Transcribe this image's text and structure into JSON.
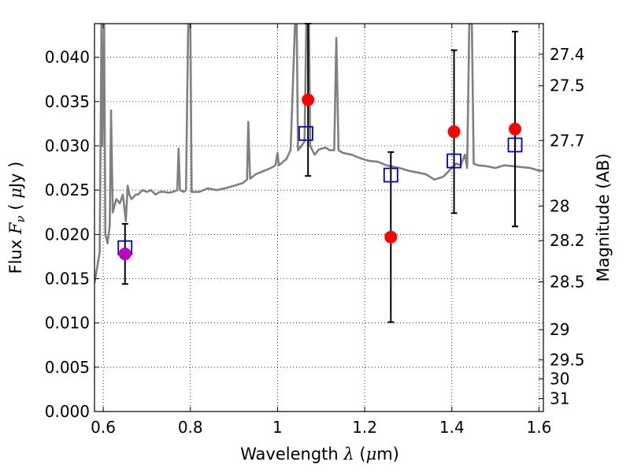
{
  "chart_data": {
    "type": "scatter",
    "title": "",
    "xlabel_prefix": "Wavelength  ",
    "xlabel_symbol": "λ",
    "xlabel_unit_open": " (",
    "xlabel_unit_symbol": "μ",
    "xlabel_unit_close": "m)",
    "ylabel_prefix": "Flux  ",
    "ylabel_symbol": "F",
    "ylabel_subscript": "ν",
    "ylabel_unit_open": "  ( ",
    "ylabel_unit_symbol": "μ",
    "ylabel_unit_close": "Jy )",
    "y2label": "Magnitude (AB)",
    "xlim": [
      0.58,
      1.61
    ],
    "ylim": [
      0.0,
      0.0438
    ],
    "grid": true,
    "grid_style": "dotted",
    "x_ticks": [
      0.6,
      0.8,
      1.0,
      1.2,
      1.4,
      1.6
    ],
    "x_tick_labels": [
      "0.6",
      "0.8",
      "1",
      "1.2",
      "1.4",
      "1.6"
    ],
    "y_ticks": [
      0.0,
      0.005,
      0.01,
      0.015,
      0.02,
      0.025,
      0.03,
      0.035,
      0.04
    ],
    "y_tick_labels": [
      "0.000",
      "0.005",
      "0.010",
      "0.015",
      "0.020",
      "0.025",
      "0.030",
      "0.035",
      "0.040"
    ],
    "y2_ticks": [
      {
        "label": "27.4",
        "flux": 0.04034
      },
      {
        "label": "27.5",
        "flux": 0.03679
      },
      {
        "label": "27.7",
        "flux": 0.0306
      },
      {
        "label": "28",
        "flux": 0.02321
      },
      {
        "label": "28.2",
        "flux": 0.0193
      },
      {
        "label": "28.5",
        "flux": 0.01464
      },
      {
        "label": "29",
        "flux": 0.00924
      },
      {
        "label": "29.5",
        "flux": 0.00583
      },
      {
        "label": "30",
        "flux": 0.00368
      },
      {
        "label": "31",
        "flux": 0.00146
      }
    ],
    "colors": {
      "spectrum": "#808080",
      "observed": "#ff0000",
      "observed_special": "#bf00bf",
      "model": "#0000cc",
      "errorbar": "#000000"
    },
    "series": [
      {
        "role": "observed",
        "marker": "circle",
        "points": [
          {
            "x": 0.65,
            "y": 0.0178,
            "yerr": 0.0034,
            "color": "#bf00bf"
          },
          {
            "x": 1.07,
            "y": 0.0352,
            "yerr": 0.0086,
            "color": "#ff0000"
          },
          {
            "x": 1.26,
            "y": 0.0197,
            "yerr": 0.0096,
            "color": "#ff0000"
          },
          {
            "x": 1.405,
            "y": 0.0316,
            "yerr": 0.0092,
            "color": "#ff0000"
          },
          {
            "x": 1.545,
            "y": 0.0319,
            "yerr": 0.011,
            "color": "#ff0000"
          }
        ]
      },
      {
        "role": "model",
        "marker": "open-square",
        "points": [
          {
            "x": 0.65,
            "y": 0.0185
          },
          {
            "x": 1.065,
            "y": 0.0314
          },
          {
            "x": 1.26,
            "y": 0.0267
          },
          {
            "x": 1.405,
            "y": 0.0283
          },
          {
            "x": 1.545,
            "y": 0.0301
          }
        ]
      },
      {
        "role": "spectrum",
        "marker": "line",
        "points": [
          [
            0.58,
            0.0145
          ],
          [
            0.592,
            0.018
          ],
          [
            0.596,
            0.044
          ],
          [
            0.598,
            0.03
          ],
          [
            0.602,
            0.044
          ],
          [
            0.605,
            0.02
          ],
          [
            0.61,
            0.019
          ],
          [
            0.615,
            0.021
          ],
          [
            0.618,
            0.034
          ],
          [
            0.622,
            0.0225
          ],
          [
            0.63,
            0.024
          ],
          [
            0.638,
            0.0235
          ],
          [
            0.645,
            0.0245
          ],
          [
            0.652,
            0.0215
          ],
          [
            0.656,
            0.0255
          ],
          [
            0.66,
            0.0245
          ],
          [
            0.665,
            0.024
          ],
          [
            0.675,
            0.0245
          ],
          [
            0.68,
            0.0245
          ],
          [
            0.69,
            0.025
          ],
          [
            0.7,
            0.0248
          ],
          [
            0.71,
            0.025
          ],
          [
            0.72,
            0.0245
          ],
          [
            0.73,
            0.0248
          ],
          [
            0.74,
            0.0248
          ],
          [
            0.75,
            0.0247
          ],
          [
            0.76,
            0.0248
          ],
          [
            0.77,
            0.025
          ],
          [
            0.773,
            0.0297
          ],
          [
            0.776,
            0.025
          ],
          [
            0.785,
            0.0248
          ],
          [
            0.79,
            0.025
          ],
          [
            0.795,
            0.0438
          ],
          [
            0.8,
            0.0438
          ],
          [
            0.803,
            0.0248
          ],
          [
            0.82,
            0.0248
          ],
          [
            0.84,
            0.0252
          ],
          [
            0.86,
            0.025
          ],
          [
            0.88,
            0.0252
          ],
          [
            0.9,
            0.0255
          ],
          [
            0.92,
            0.0258
          ],
          [
            0.93,
            0.0262
          ],
          [
            0.933,
            0.0327
          ],
          [
            0.937,
            0.0263
          ],
          [
            0.95,
            0.0268
          ],
          [
            0.97,
            0.0272
          ],
          [
            0.985,
            0.0275
          ],
          [
            0.995,
            0.0278
          ],
          [
            1.0,
            0.0292
          ],
          [
            1.003,
            0.0278
          ],
          [
            1.02,
            0.0285
          ],
          [
            1.03,
            0.0295
          ],
          [
            1.04,
            0.0438
          ],
          [
            1.044,
            0.0438
          ],
          [
            1.047,
            0.0295
          ],
          [
            1.055,
            0.03
          ],
          [
            1.062,
            0.0305
          ],
          [
            1.066,
            0.0438
          ],
          [
            1.072,
            0.0438
          ],
          [
            1.075,
            0.03
          ],
          [
            1.085,
            0.029
          ],
          [
            1.095,
            0.0296
          ],
          [
            1.11,
            0.0298
          ],
          [
            1.12,
            0.0295
          ],
          [
            1.13,
            0.0295
          ],
          [
            1.135,
            0.0422
          ],
          [
            1.14,
            0.0295
          ],
          [
            1.15,
            0.0292
          ],
          [
            1.17,
            0.029
          ],
          [
            1.19,
            0.0286
          ],
          [
            1.21,
            0.0283
          ],
          [
            1.23,
            0.0282
          ],
          [
            1.25,
            0.0278
          ],
          [
            1.28,
            0.0275
          ],
          [
            1.3,
            0.0272
          ],
          [
            1.32,
            0.027
          ],
          [
            1.34,
            0.0268
          ],
          [
            1.36,
            0.0262
          ],
          [
            1.38,
            0.0265
          ],
          [
            1.39,
            0.027
          ],
          [
            1.4,
            0.0275
          ],
          [
            1.41,
            0.028
          ],
          [
            1.42,
            0.0278
          ],
          [
            1.43,
            0.029
          ],
          [
            1.435,
            0.0275
          ],
          [
            1.44,
            0.0438
          ],
          [
            1.446,
            0.0438
          ],
          [
            1.45,
            0.028
          ],
          [
            1.46,
            0.0278
          ],
          [
            1.48,
            0.0277
          ],
          [
            1.5,
            0.0275
          ],
          [
            1.52,
            0.0278
          ],
          [
            1.54,
            0.0277
          ],
          [
            1.56,
            0.0276
          ],
          [
            1.58,
            0.0275
          ],
          [
            1.6,
            0.0272
          ],
          [
            1.61,
            0.0272
          ]
        ]
      }
    ]
  }
}
